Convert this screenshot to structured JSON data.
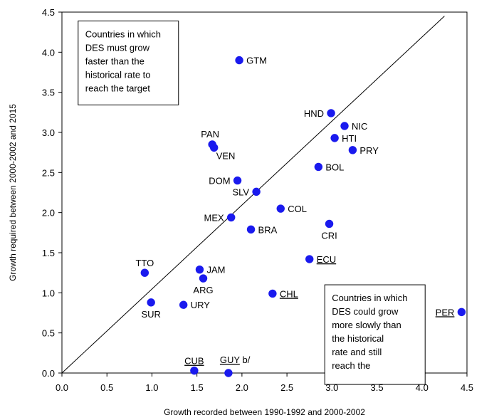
{
  "chart_data": {
    "type": "scatter",
    "xlabel": "Growth recorded between 1990-1992 and 2000-2002",
    "ylabel": "Growth required between 2000-2002 and 2015",
    "xlim": [
      0,
      4.5
    ],
    "ylim": [
      0,
      4.5
    ],
    "x_ticks": [
      "0.0",
      "0.5",
      "1.0",
      "1.5",
      "2.0",
      "2.5",
      "3.0",
      "3.5",
      "4.0",
      "4.5"
    ],
    "y_ticks": [
      "0.0",
      "0.5",
      "1.0",
      "1.5",
      "2.0",
      "2.5",
      "3.0",
      "3.5",
      "4.0",
      "4.5"
    ],
    "grid": false,
    "legend": "none",
    "reference_line": {
      "from": [
        0,
        0
      ],
      "to": [
        4.25,
        4.45
      ]
    },
    "marker_color": "#1a1aee",
    "points": [
      {
        "label": "GTM",
        "x": 1.97,
        "y": 3.9,
        "label_pos": "right",
        "underline": false
      },
      {
        "label": "HND",
        "x": 2.99,
        "y": 3.24,
        "label_pos": "left",
        "underline": false
      },
      {
        "label": "NIC",
        "x": 3.14,
        "y": 3.08,
        "label_pos": "right",
        "underline": false
      },
      {
        "label": "HTI",
        "x": 3.03,
        "y": 2.93,
        "label_pos": "right",
        "underline": false
      },
      {
        "label": "PRY",
        "x": 3.23,
        "y": 2.78,
        "label_pos": "right",
        "underline": false
      },
      {
        "label": "PAN",
        "x": 1.67,
        "y": 2.85,
        "label_pos": "above-left",
        "underline": false
      },
      {
        "label": "VEN",
        "x": 1.69,
        "y": 2.81,
        "label_pos": "below-right",
        "underline": false
      },
      {
        "label": "BOL",
        "x": 2.85,
        "y": 2.57,
        "label_pos": "right",
        "underline": false
      },
      {
        "label": "DOM",
        "x": 1.95,
        "y": 2.4,
        "label_pos": "left",
        "underline": false
      },
      {
        "label": "SLV",
        "x": 2.16,
        "y": 2.26,
        "label_pos": "left",
        "underline": false
      },
      {
        "label": "COL",
        "x": 2.43,
        "y": 2.05,
        "label_pos": "right",
        "underline": false
      },
      {
        "label": "MEX",
        "x": 1.88,
        "y": 1.94,
        "label_pos": "left",
        "underline": false
      },
      {
        "label": "CRI",
        "x": 2.97,
        "y": 1.86,
        "label_pos": "below",
        "underline": false
      },
      {
        "label": "BRA",
        "x": 2.1,
        "y": 1.79,
        "label_pos": "right",
        "underline": false
      },
      {
        "label": "ECU",
        "x": 2.75,
        "y": 1.42,
        "label_pos": "right",
        "underline": true
      },
      {
        "label": "TTO",
        "x": 0.92,
        "y": 1.25,
        "label_pos": "above",
        "underline": false
      },
      {
        "label": "JAM",
        "x": 1.53,
        "y": 1.29,
        "label_pos": "right",
        "underline": false
      },
      {
        "label": "ARG",
        "x": 1.57,
        "y": 1.18,
        "label_pos": "below",
        "underline": false
      },
      {
        "label": "CHL",
        "x": 2.34,
        "y": 0.99,
        "label_pos": "right",
        "underline": true
      },
      {
        "label": "SUR",
        "x": 0.99,
        "y": 0.88,
        "label_pos": "below",
        "underline": false
      },
      {
        "label": "URY",
        "x": 1.35,
        "y": 0.85,
        "label_pos": "right",
        "underline": false
      },
      {
        "label": "PER",
        "x": 4.44,
        "y": 0.76,
        "label_pos": "left",
        "underline": true
      },
      {
        "label": "CUB",
        "x": 1.47,
        "y": 0.03,
        "label_pos": "above",
        "underline": true
      },
      {
        "label": "GUY",
        "x": 1.85,
        "y": 0.0,
        "label_pos": "above-right",
        "underline": true,
        "suffix": " b/"
      }
    ],
    "annotations": [
      {
        "id": "top-left-note",
        "lines": [
          "Countries in which",
          "DES must grow",
          "faster than the",
          "historical rate to",
          "reach the target"
        ],
        "anchor": [
          0.18,
          4.39
        ]
      },
      {
        "id": "bottom-right-note",
        "lines": [
          "Countries in which",
          "DES could grow",
          "more slowly than",
          "the historical",
          "rate and still",
          "reach the"
        ],
        "anchor": [
          2.92,
          1.1
        ]
      }
    ]
  }
}
